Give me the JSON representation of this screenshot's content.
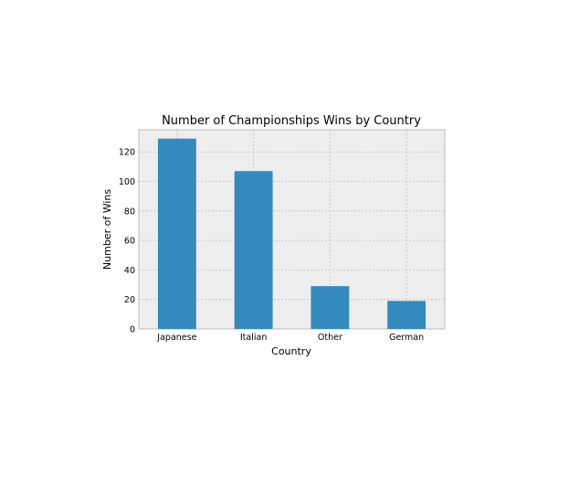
{
  "chart_data": {
    "type": "bar",
    "title": "Number of Championships Wins by Country",
    "xlabel": "Country",
    "ylabel": "Number of Wins",
    "categories": [
      "Japanese",
      "Italian",
      "Other",
      "German"
    ],
    "values": [
      129,
      107,
      29,
      19
    ],
    "ylim": [
      0,
      135
    ],
    "yticks": [
      "0",
      "20",
      "40",
      "60",
      "80",
      "100",
      "120"
    ],
    "grid": true,
    "bar_color": "#348abd",
    "plot_background": "#eeeeee",
    "grid_color": "#bcbcbc"
  }
}
